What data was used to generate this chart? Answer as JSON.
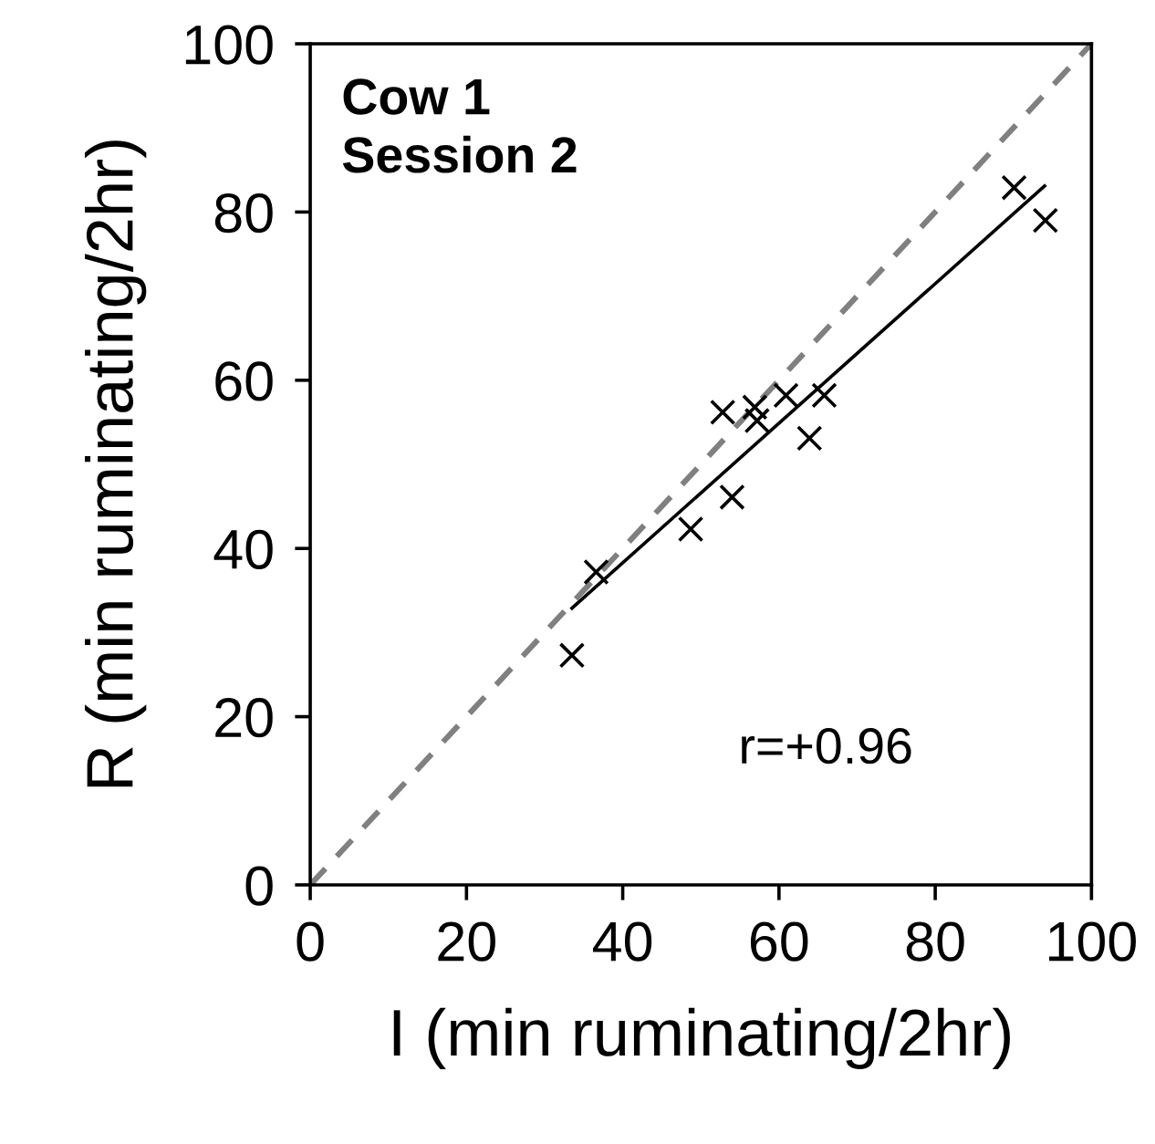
{
  "chart_data": {
    "type": "scatter",
    "xlabel": "I (min ruminating/2hr)",
    "ylabel": "R (min ruminating/2hr)",
    "annotations": [
      "Cow 1\nSession 2",
      "r=+0.96"
    ],
    "xlim": [
      0,
      100
    ],
    "ylim": [
      0,
      100
    ],
    "xticks": [
      0,
      20,
      40,
      60,
      80,
      100
    ],
    "yticks": [
      0,
      20,
      40,
      60,
      80,
      100
    ],
    "grid": false,
    "legend": false,
    "series": [
      {
        "marker": "cross",
        "color": "#000000",
        "x": [
          33.5,
          36.6,
          48.7,
          54.0,
          52.8,
          56.9,
          57.2,
          60.9,
          65.8,
          63.9,
          90.1,
          94.1
        ],
        "values": [
          27.3,
          37.2,
          42.3,
          46.1,
          56.2,
          56.8,
          55.2,
          58.2,
          58.2,
          53.1,
          82.9,
          79.0
        ]
      },
      {
        "type": "line",
        "marker": "none",
        "color": "#000000",
        "line_style": "solid",
        "x": [
          33.5,
          94.0
        ],
        "values": [
          32.9,
          83.1
        ]
      },
      {
        "type": "line",
        "marker": "none",
        "color": "#808080",
        "line_style": "dashed",
        "x": [
          0,
          100
        ],
        "values": [
          0,
          100
        ]
      }
    ]
  }
}
